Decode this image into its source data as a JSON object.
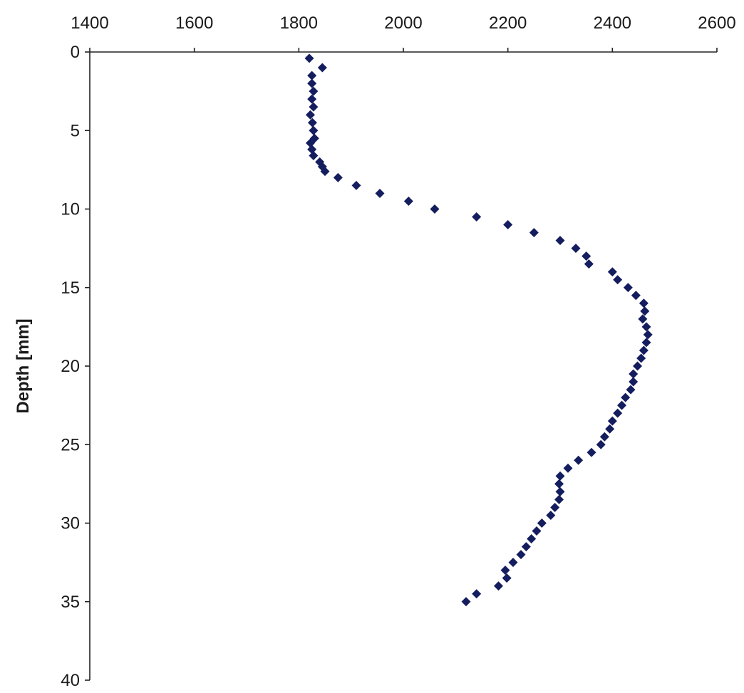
{
  "chart_data": {
    "type": "scatter",
    "title": "",
    "xlabel": "",
    "ylabel": "Depth [mm]",
    "xlim": [
      1400,
      2600
    ],
    "ylim": [
      0,
      40
    ],
    "y_inverted": true,
    "x_axis_position": "top",
    "grid": false,
    "x_ticks": [
      "1400",
      "1600",
      "1800",
      "2000",
      "2200",
      "2400",
      "2600"
    ],
    "y_ticks": [
      "0",
      "5",
      "10",
      "15",
      "20",
      "25",
      "30",
      "35",
      "40"
    ],
    "marker": "diamond",
    "marker_color": "#141d5e",
    "series": [
      {
        "points": [
          [
            1820,
            0.4
          ],
          [
            1845,
            1.0
          ],
          [
            1825,
            1.5
          ],
          [
            1825,
            2.0
          ],
          [
            1828,
            2.5
          ],
          [
            1825,
            3.0
          ],
          [
            1828,
            3.5
          ],
          [
            1822,
            4.0
          ],
          [
            1826,
            4.5
          ],
          [
            1828,
            5.0
          ],
          [
            1830,
            5.5
          ],
          [
            1822,
            5.8
          ],
          [
            1825,
            6.2
          ],
          [
            1828,
            6.6
          ],
          [
            1840,
            7.0
          ],
          [
            1845,
            7.3
          ],
          [
            1850,
            7.6
          ],
          [
            1875,
            8.0
          ],
          [
            1910,
            8.5
          ],
          [
            1955,
            9.0
          ],
          [
            2010,
            9.5
          ],
          [
            2060,
            10.0
          ],
          [
            2140,
            10.5
          ],
          [
            2200,
            11.0
          ],
          [
            2250,
            11.5
          ],
          [
            2300,
            12.0
          ],
          [
            2330,
            12.5
          ],
          [
            2350,
            13.0
          ],
          [
            2355,
            13.5
          ],
          [
            2400,
            14.0
          ],
          [
            2410,
            14.5
          ],
          [
            2430,
            15.0
          ],
          [
            2445,
            15.5
          ],
          [
            2460,
            16.0
          ],
          [
            2462,
            16.5
          ],
          [
            2458,
            17.0
          ],
          [
            2465,
            17.5
          ],
          [
            2468,
            18.0
          ],
          [
            2465,
            18.5
          ],
          [
            2460,
            19.0
          ],
          [
            2455,
            19.5
          ],
          [
            2448,
            20.0
          ],
          [
            2440,
            20.5
          ],
          [
            2440,
            21.0
          ],
          [
            2435,
            21.5
          ],
          [
            2425,
            22.0
          ],
          [
            2418,
            22.5
          ],
          [
            2410,
            23.0
          ],
          [
            2400,
            23.5
          ],
          [
            2395,
            24.0
          ],
          [
            2385,
            24.5
          ],
          [
            2378,
            25.0
          ],
          [
            2360,
            25.5
          ],
          [
            2335,
            26.0
          ],
          [
            2315,
            26.5
          ],
          [
            2300,
            27.0
          ],
          [
            2298,
            27.5
          ],
          [
            2300,
            28.0
          ],
          [
            2298,
            28.5
          ],
          [
            2290,
            29.0
          ],
          [
            2282,
            29.5
          ],
          [
            2265,
            30.0
          ],
          [
            2255,
            30.5
          ],
          [
            2245,
            31.0
          ],
          [
            2235,
            31.5
          ],
          [
            2225,
            32.0
          ],
          [
            2210,
            32.5
          ],
          [
            2195,
            33.0
          ],
          [
            2198,
            33.5
          ],
          [
            2182,
            34.0
          ],
          [
            2140,
            34.5
          ],
          [
            2120,
            35.0
          ]
        ]
      }
    ]
  }
}
